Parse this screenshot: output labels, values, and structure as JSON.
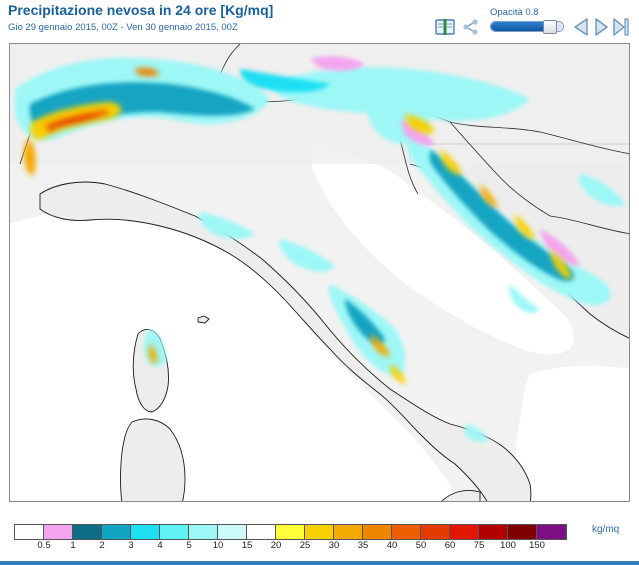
{
  "header": {
    "title": "Precipitazione nevosa in 24 ore [Kg/mq]",
    "subtitle": "Gio 29 gennaio 2015, 00Z - Ven 30 gennaio 2015, 00Z"
  },
  "toolbar": {
    "opacity_label": "Opacità 0.8",
    "opacity_value": 0.8,
    "icons": [
      "book-icon",
      "share-icon",
      "previous-icon",
      "play-icon",
      "next-icon"
    ]
  },
  "legend": {
    "unit": "kg/mq",
    "swatches": [
      {
        "color": "#ffffff",
        "label": "0.5"
      },
      {
        "color": "#f3a6ef",
        "label": "1"
      },
      {
        "color": "#0b6e86",
        "label": "2"
      },
      {
        "color": "#12a4c3",
        "label": "3"
      },
      {
        "color": "#1fe0f2",
        "label": "4"
      },
      {
        "color": "#5ff3f3",
        "label": "5"
      },
      {
        "color": "#9df7f7",
        "label": "10"
      },
      {
        "color": "#cdfbfb",
        "label": "15"
      },
      {
        "color": "#ffffff",
        "label": "20"
      },
      {
        "color": "#ffff3a",
        "label": "25"
      },
      {
        "color": "#f7d000",
        "label": "30"
      },
      {
        "color": "#f4a900",
        "label": "35"
      },
      {
        "color": "#ef8500",
        "label": "40"
      },
      {
        "color": "#ee5d00",
        "label": "50"
      },
      {
        "color": "#e53b00",
        "label": "60"
      },
      {
        "color": "#e21600",
        "label": "75"
      },
      {
        "color": "#b20000",
        "label": "100"
      },
      {
        "color": "#800000",
        "label": "150"
      },
      {
        "color": "#7c0f84",
        "label": ""
      }
    ]
  }
}
